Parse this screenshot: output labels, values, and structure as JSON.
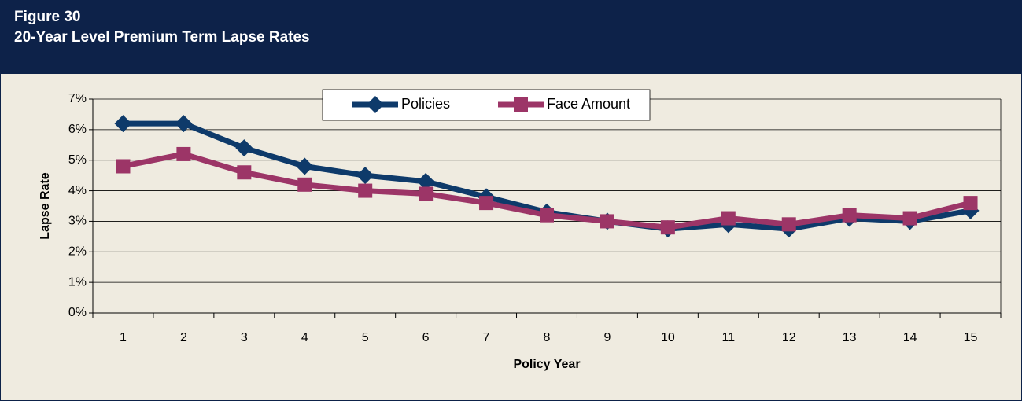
{
  "header": {
    "figure": "Figure 30",
    "title": "20-Year Level Premium Term Lapse Rates"
  },
  "chart_data": {
    "type": "line",
    "ylabel": "Lapse Rate",
    "xlabel": "Policy Year",
    "categories": [
      "1",
      "2",
      "3",
      "4",
      "5",
      "6",
      "7",
      "8",
      "9",
      "10",
      "11",
      "12",
      "13",
      "14",
      "15"
    ],
    "series": [
      {
        "name": "Policies",
        "color": "#0e3a6a",
        "marker": "diamond",
        "values": [
          6.2,
          6.2,
          5.4,
          4.8,
          4.5,
          4.3,
          3.8,
          3.3,
          3.0,
          2.75,
          2.9,
          2.75,
          3.1,
          3.0,
          3.35
        ]
      },
      {
        "name": "Face Amount",
        "color": "#9c3567",
        "marker": "square",
        "values": [
          4.8,
          5.2,
          4.6,
          4.2,
          4.0,
          3.9,
          3.6,
          3.2,
          3.0,
          2.8,
          3.1,
          2.9,
          3.2,
          3.1,
          3.6
        ]
      }
    ],
    "ylim": [
      0,
      7
    ],
    "yticks": [
      {
        "value": 0,
        "label": "0%"
      },
      {
        "value": 1,
        "label": "1%"
      },
      {
        "value": 2,
        "label": "2%"
      },
      {
        "value": 3,
        "label": "3%"
      },
      {
        "value": 4,
        "label": "4%"
      },
      {
        "value": 5,
        "label": "5%"
      },
      {
        "value": 6,
        "label": "6%"
      },
      {
        "value": 7,
        "label": "7%"
      }
    ],
    "grid": true,
    "legend": "top"
  }
}
